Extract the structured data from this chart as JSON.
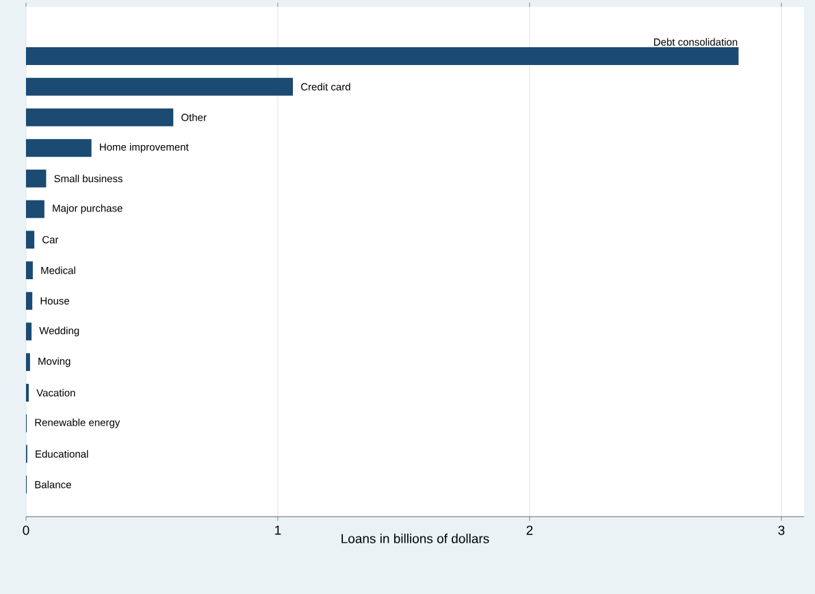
{
  "chart_data": {
    "type": "bar",
    "orientation": "horizontal",
    "xlabel": "Loans in billions of dollars",
    "categories": [
      "Debt consolidation",
      "Credit card",
      "Other",
      "Home improvement",
      "Small business",
      "Major purchase",
      "Car",
      "Medical",
      "House",
      "Wedding",
      "Moving",
      "Vacation",
      "Renewable energy",
      "Educational",
      "Balance"
    ],
    "values": [
      2.83,
      1.06,
      0.585,
      0.26,
      0.08,
      0.073,
      0.033,
      0.027,
      0.025,
      0.022,
      0.016,
      0.011,
      0.003,
      0.005,
      0.003
    ],
    "color": "#1b4a72",
    "xlim": [
      0,
      3.09
    ],
    "xticks": [
      0,
      1,
      2,
      3
    ],
    "grid": "x"
  }
}
